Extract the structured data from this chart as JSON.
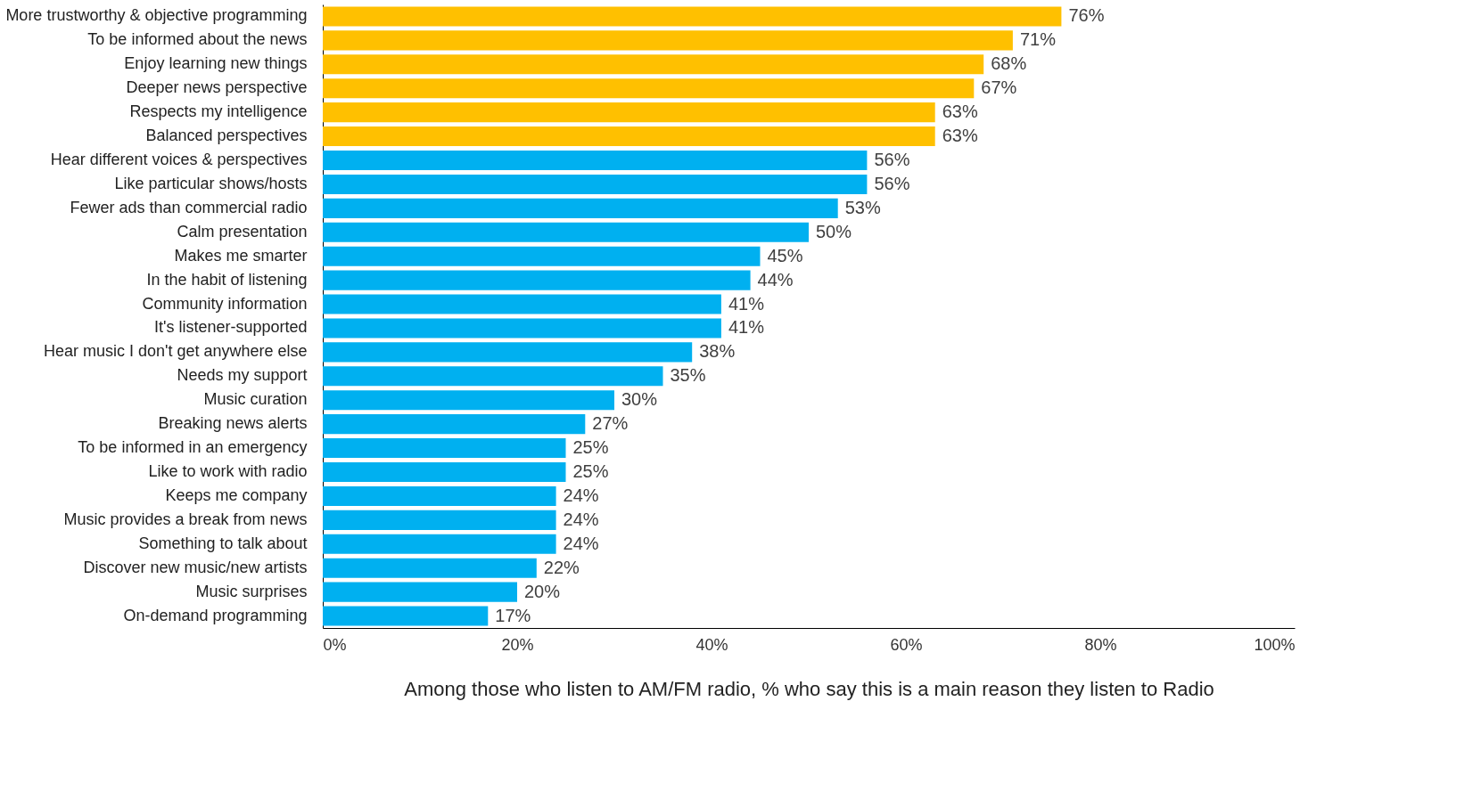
{
  "chart_data": {
    "type": "bar",
    "orientation": "horizontal",
    "xlabel": "Among those who listen to AM/FM radio, % who say this is a main reason they listen to Radio",
    "categories": [
      "More trustworthy & objective programming",
      "To be informed about the news",
      "Enjoy learning new things",
      "Deeper news perspective",
      "Respects my intelligence",
      "Balanced perspectives",
      "Hear different voices & perspectives",
      "Like particular shows/hosts",
      "Fewer ads than commercial radio",
      "Calm presentation",
      "Makes me smarter",
      "In the habit of listening",
      "Community information",
      "It's listener-supported",
      "Hear music I don't get anywhere else",
      "Needs my support",
      "Music curation",
      "Breaking news alerts",
      "To be informed in an emergency",
      "Like to work with radio",
      "Keeps me company",
      "Music provides a break from news",
      "Something to talk about",
      "Discover new music/new artists",
      "Music surprises",
      "On-demand programming"
    ],
    "values": [
      76,
      71,
      68,
      67,
      63,
      63,
      56,
      56,
      53,
      50,
      45,
      44,
      41,
      41,
      38,
      35,
      30,
      27,
      25,
      25,
      24,
      24,
      24,
      22,
      20,
      17
    ],
    "value_labels": [
      "76%",
      "71%",
      "68%",
      "67%",
      "63%",
      "63%",
      "56%",
      "56%",
      "53%",
      "50%",
      "45%",
      "44%",
      "41%",
      "41%",
      "38%",
      "35%",
      "30%",
      "27%",
      "25%",
      "25%",
      "24%",
      "24%",
      "24%",
      "22%",
      "20%",
      "17%"
    ],
    "colors": [
      "#ffc000",
      "#ffc000",
      "#ffc000",
      "#ffc000",
      "#ffc000",
      "#ffc000",
      "#00b0f0",
      "#00b0f0",
      "#00b0f0",
      "#00b0f0",
      "#00b0f0",
      "#00b0f0",
      "#00b0f0",
      "#00b0f0",
      "#00b0f0",
      "#00b0f0",
      "#00b0f0",
      "#00b0f0",
      "#00b0f0",
      "#00b0f0",
      "#00b0f0",
      "#00b0f0",
      "#00b0f0",
      "#00b0f0",
      "#00b0f0",
      "#00b0f0"
    ],
    "xlim": [
      0,
      100
    ],
    "xticks": [
      {
        "value": 0,
        "label": "0%"
      },
      {
        "value": 20,
        "label": "20%"
      },
      {
        "value": 40,
        "label": "40%"
      },
      {
        "value": 60,
        "label": "60%"
      },
      {
        "value": 80,
        "label": "80%"
      },
      {
        "value": 100,
        "label": "100%"
      }
    ],
    "grid": false
  }
}
